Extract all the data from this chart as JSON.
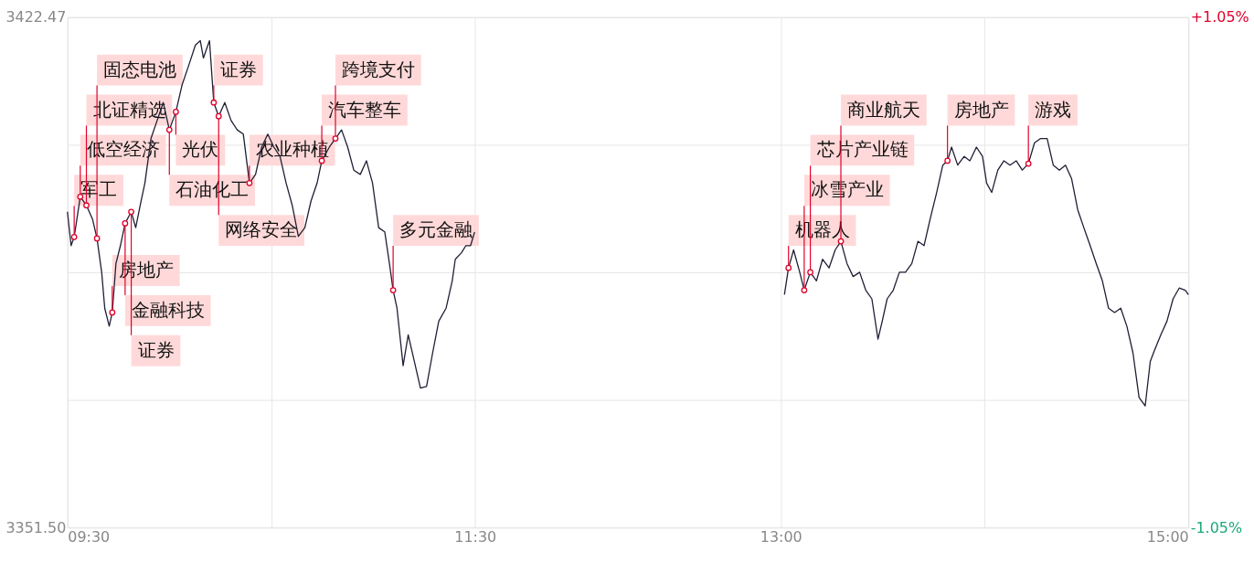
{
  "chart_data": {
    "type": "line",
    "series": [
      {
        "color": "#1f1f35",
        "x": [
          9.5,
          9.518,
          9.533,
          9.563,
          9.593,
          9.623,
          9.645,
          9.668,
          9.683,
          9.705,
          9.72,
          9.738,
          9.76,
          9.783,
          9.813,
          9.835,
          9.857,
          9.88,
          9.91,
          9.94,
          9.97,
          10,
          10.032,
          10.062,
          10.092,
          10.128,
          10.152,
          10.167,
          10.182,
          10.197,
          10.218,
          10.242,
          10.272,
          10.303,
          10.333,
          10.363,
          10.393,
          10.423,
          10.453,
          10.483,
          10.513,
          10.543,
          10.573,
          10.603,
          10.633,
          10.665,
          10.695,
          10.725,
          10.748,
          10.785,
          10.815,
          10.845,
          10.875,
          10.905,
          10.937,
          10.967,
          10.997,
          11.027,
          11.057,
          11.08,
          11.098,
          11.117,
          11.147,
          11.172,
          11.202,
          11.232,
          11.262,
          11.292,
          11.322,
          11.358,
          11.388,
          11.403,
          11.433,
          11.455,
          11.478,
          11.498
        ],
        "values": [
          3395.4,
          3390.7,
          3391.9,
          3397.5,
          3396.3,
          3394.4,
          3391.7,
          3387.0,
          3382.0,
          3379.5,
          3381.4,
          3388.2,
          3390.7,
          3393.8,
          3395.4,
          3393.2,
          3396.3,
          3399.4,
          3405.6,
          3408.1,
          3410.6,
          3406.8,
          3409.3,
          3413.0,
          3415.5,
          3418.6,
          3419.2,
          3416.8,
          3418.0,
          3419.2,
          3410.6,
          3408.7,
          3410.6,
          3408.1,
          3406.8,
          3406.2,
          3399.4,
          3400.6,
          3404.4,
          3406.2,
          3404.4,
          3403.1,
          3399.4,
          3396.3,
          3392.0,
          3393.2,
          3396.9,
          3399.4,
          3402.5,
          3404.4,
          3405.6,
          3406.8,
          3404.4,
          3401.2,
          3400.6,
          3402.5,
          3399.4,
          3393.2,
          3392.6,
          3388.2,
          3384.5,
          3382.0,
          3374.0,
          3378.3,
          3374.6,
          3370.9,
          3371.1,
          3375.8,
          3380.2,
          3382.0,
          3385.8,
          3388.8,
          3389.7,
          3390.7,
          3390.7,
          3392.6
        ]
      },
      {
        "color": "#1f1f35",
        "x": [
          13.018,
          13.038,
          13.063,
          13.093,
          13.115,
          13.145,
          13.175,
          13.205,
          13.237,
          13.267,
          13.295,
          13.325,
          13.355,
          13.387,
          13.417,
          13.447,
          13.477,
          13.498,
          13.522,
          13.552,
          13.582,
          13.612,
          13.643,
          13.673,
          13.703,
          13.733,
          13.765,
          13.795,
          13.818,
          13.838,
          13.868,
          13.9,
          13.928,
          13.96,
          13.99,
          14.01,
          14.035,
          14.065,
          14.095,
          14.125,
          14.155,
          14.185,
          14.215,
          14.245,
          14.275,
          14.307,
          14.337,
          14.367,
          14.397,
          14.427,
          14.457,
          14.487,
          14.518,
          14.548,
          14.578,
          14.608,
          14.638,
          14.668,
          14.698,
          14.728,
          14.758,
          14.788,
          14.813,
          14.833,
          14.865,
          14.895,
          14.925,
          14.955,
          14.985,
          15
        ],
        "values": [
          3383.9,
          3387.6,
          3390.1,
          3387.0,
          3384.5,
          3387.0,
          3385.8,
          3388.8,
          3387.6,
          3390.1,
          3391.3,
          3388.2,
          3386.4,
          3387.0,
          3384.5,
          3383.3,
          3377.7,
          3380.2,
          3383.3,
          3384.5,
          3387.0,
          3387.0,
          3388.2,
          3391.3,
          3390.7,
          3394.4,
          3398.1,
          3401.9,
          3402.5,
          3404.4,
          3401.9,
          3403.1,
          3402.5,
          3404.4,
          3403.1,
          3399.4,
          3398.1,
          3401.2,
          3402.5,
          3401.9,
          3402.5,
          3401.2,
          3402.1,
          3405.0,
          3405.6,
          3405.6,
          3401.9,
          3401.2,
          3401.9,
          3400.0,
          3395.7,
          3393.2,
          3390.7,
          3388.2,
          3385.8,
          3382.0,
          3381.4,
          3382.0,
          3379.5,
          3375.8,
          3369.6,
          3368.4,
          3374.6,
          3376.1,
          3378.3,
          3380.2,
          3383.3,
          3384.8,
          3384.5,
          3383.9
        ]
      }
    ],
    "xlim": [
      9.5,
      15
    ],
    "xticks": [
      {
        "value": 9.5,
        "label": "09:30"
      },
      {
        "value": 10.5,
        "label": null
      },
      {
        "value": 11.5,
        "label": "11:30"
      },
      {
        "value": 13,
        "label": "13:00"
      },
      {
        "value": 14,
        "label": null
      },
      {
        "value": 15,
        "label": "15:00"
      }
    ],
    "ylim": [
      3351.5,
      3422.47
    ],
    "yticks": [
      {
        "value": 3351.5,
        "label": "3351.50"
      },
      {
        "value": 3369.24,
        "label": null
      },
      {
        "value": 3386.985,
        "label": null
      },
      {
        "value": 3404.73,
        "label": null
      },
      {
        "value": 3422.47,
        "label": "3422.47"
      }
    ],
    "y2lim": [
      -1.05,
      1.05
    ],
    "y2ticks": [
      {
        "value": -1.05,
        "label": "-1.05%"
      },
      {
        "value": 1.05,
        "label": "+1.05%"
      }
    ],
    "grid": true,
    "annotations": [
      {
        "text": "军工",
        "x": 9.533,
        "y": 3391.9
      },
      {
        "text": "低空经济",
        "x": 9.563,
        "y": 3397.5
      },
      {
        "text": "北证精选",
        "x": 9.593,
        "y": 3396.3
      },
      {
        "text": "固态电池",
        "x": 9.645,
        "y": 3391.7
      },
      {
        "text": "房地产",
        "x": 9.72,
        "y": 3381.4
      },
      {
        "text": "金融科技",
        "x": 9.783,
        "y": 3393.8
      },
      {
        "text": "证券",
        "x": 9.813,
        "y": 3395.4
      },
      {
        "text": "石油化工",
        "x": 10.0,
        "y": 3406.8
      },
      {
        "text": "光伏",
        "x": 10.032,
        "y": 3409.3
      },
      {
        "text": "证券",
        "x": 10.218,
        "y": 3410.6
      },
      {
        "text": "网络安全",
        "x": 10.242,
        "y": 3408.7
      },
      {
        "text": "农业种植",
        "x": 10.393,
        "y": 3399.4
      },
      {
        "text": "汽车整车",
        "x": 10.748,
        "y": 3402.5
      },
      {
        "text": "跨境支付",
        "x": 10.815,
        "y": 3405.6
      },
      {
        "text": "多元金融",
        "x": 11.098,
        "y": 3384.5
      },
      {
        "text": "机器人",
        "x": 13.038,
        "y": 3387.6
      },
      {
        "text": "冰雪产业",
        "x": 13.115,
        "y": 3384.5
      },
      {
        "text": "芯片产业链",
        "x": 13.145,
        "y": 3387.0
      },
      {
        "text": "商业航天",
        "x": 13.295,
        "y": 3391.3
      },
      {
        "text": "房地产",
        "x": 13.818,
        "y": 3402.5
      },
      {
        "text": "游戏",
        "x": 14.215,
        "y": 3402.1
      }
    ]
  }
}
